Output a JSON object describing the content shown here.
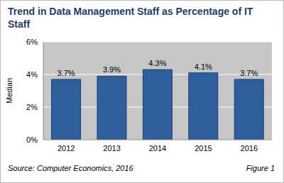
{
  "chart_data": {
    "type": "bar",
    "title": "Trend in Data Management Staff as Percentage of IT Staff",
    "y_label": "Median",
    "source": "Source: Computer Economics, 2016",
    "figure_label": "Figure 1",
    "categories": [
      "2012",
      "2013",
      "2014",
      "2015",
      "2016"
    ],
    "values": [
      3.7,
      3.9,
      4.3,
      4.1,
      3.7
    ],
    "value_labels": [
      "3.7%",
      "3.9%",
      "4.3%",
      "4.1%",
      "3.7%"
    ],
    "color": "#2f5e9c",
    "ylim": [
      0,
      6
    ],
    "yticks": [
      {
        "value": 0,
        "label": "0%"
      },
      {
        "value": 2,
        "label": "2%"
      },
      {
        "value": 4,
        "label": "4%"
      },
      {
        "value": 6,
        "label": "6%"
      }
    ],
    "grid": true,
    "data_labels": true
  }
}
